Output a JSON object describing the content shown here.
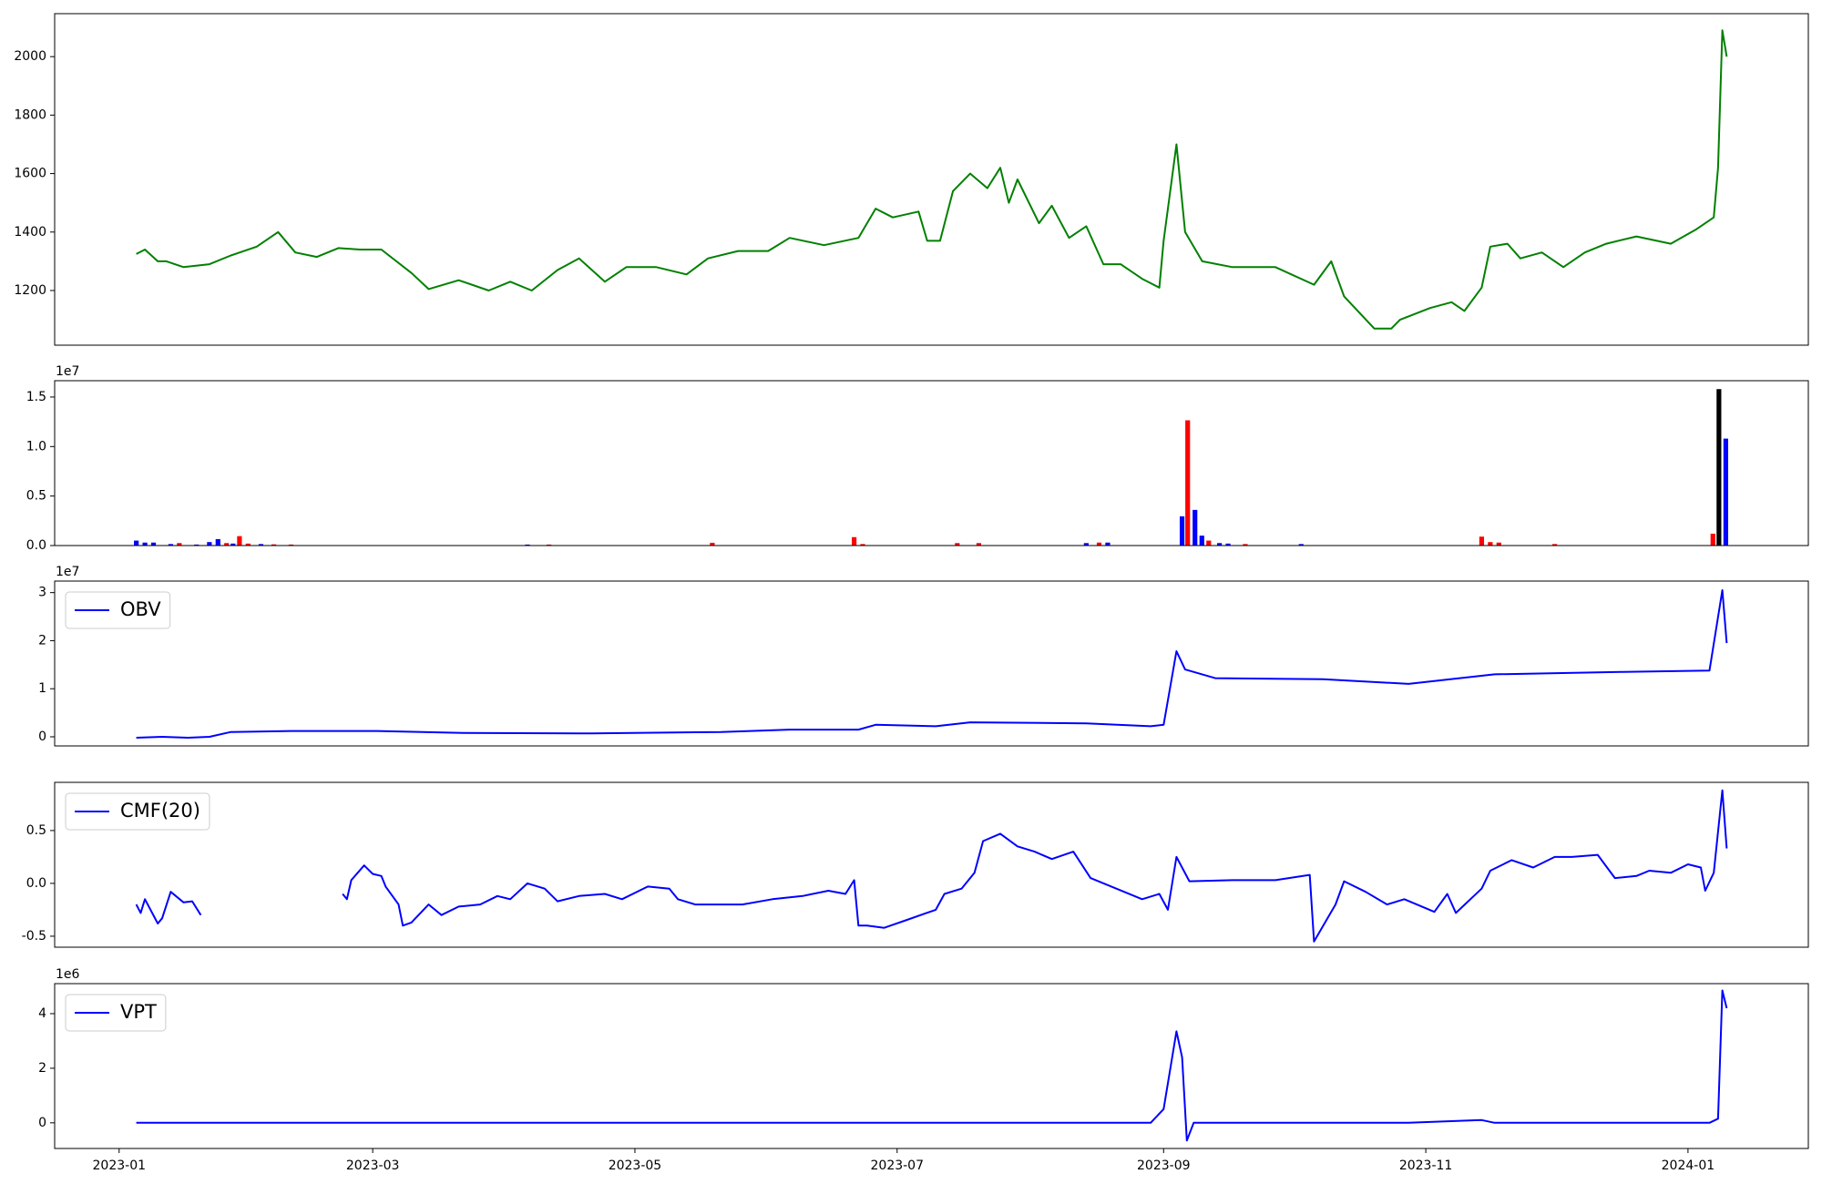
{
  "chart_data": [
    {
      "type": "line",
      "color": "green",
      "xlim": [
        -15,
        393
      ],
      "ylim": [
        1013,
        2147
      ],
      "yticks": [
        1200,
        1400,
        1600,
        1800,
        2000
      ],
      "x": [
        4,
        6,
        9,
        11,
        15,
        21,
        26,
        32,
        37,
        41,
        46,
        51,
        56,
        61,
        68,
        72,
        79,
        86,
        91,
        96,
        102,
        107,
        113,
        118,
        125,
        132,
        137,
        144,
        151,
        156,
        164,
        172,
        176,
        180,
        186,
        188,
        191,
        194,
        198,
        202,
        205,
        207,
        209,
        214,
        217,
        221,
        225,
        229,
        233,
        238,
        242,
        243,
        246,
        248,
        252,
        259,
        264,
        269,
        278,
        282,
        285,
        292,
        296,
        298,
        305,
        310,
        313,
        317,
        319,
        323,
        326,
        331,
        336,
        341,
        346,
        353,
        361,
        367,
        371,
        372,
        373,
        374
      ],
      "values": [
        1325,
        1340,
        1300,
        1300,
        1280,
        1290,
        1320,
        1350,
        1400,
        1330,
        1315,
        1345,
        1340,
        1340,
        1260,
        1205,
        1235,
        1200,
        1230,
        1200,
        1270,
        1310,
        1230,
        1280,
        1280,
        1255,
        1310,
        1335,
        1335,
        1380,
        1355,
        1380,
        1480,
        1450,
        1470,
        1370,
        1370,
        1540,
        1600,
        1550,
        1620,
        1500,
        1580,
        1430,
        1490,
        1380,
        1420,
        1290,
        1290,
        1240,
        1210,
        1370,
        1700,
        1400,
        1300,
        1280,
        1280,
        1280,
        1220,
        1300,
        1180,
        1070,
        1070,
        1100,
        1140,
        1160,
        1130,
        1210,
        1350,
        1360,
        1310,
        1330,
        1280,
        1330,
        1360,
        1385,
        1360,
        1410,
        1450,
        1620,
        2090,
        2000
      ]
    },
    {
      "type": "bar",
      "offset_label": "1e7",
      "xlim": [
        -15,
        393
      ],
      "ylim": [
        0,
        16650000
      ],
      "yticks": [
        {
          "value": 0,
          "label": "0.0"
        },
        {
          "value": 5000000,
          "label": "0.5"
        },
        {
          "value": 10000000,
          "label": "1.0"
        },
        {
          "value": 15000000,
          "label": "1.5"
        }
      ],
      "x": [
        4,
        6,
        8,
        12,
        14,
        18,
        21,
        23,
        25,
        26.5,
        28,
        30,
        33,
        36,
        40,
        95,
        100,
        138,
        171,
        173,
        195,
        200,
        225,
        228,
        230,
        247.3,
        248.6,
        250.3,
        251.9,
        253.5,
        256,
        258,
        262,
        275,
        317,
        319,
        321,
        334,
        370.8,
        372.2,
        373.8
      ],
      "values": [
        500000,
        300000,
        300000,
        150000,
        250000,
        100000,
        350000,
        650000,
        250000,
        200000,
        950000,
        200000,
        150000,
        120000,
        100000,
        100000,
        100000,
        280000,
        850000,
        150000,
        250000,
        250000,
        250000,
        300000,
        300000,
        2950000,
        12650000,
        3600000,
        1000000,
        500000,
        250000,
        200000,
        150000,
        150000,
        900000,
        350000,
        300000,
        150000,
        1200000,
        15800000,
        10800000
      ],
      "colors": [
        "blue",
        "blue",
        "blue",
        "blue",
        "red",
        "blue",
        "blue",
        "blue",
        "red",
        "blue",
        "red",
        "red",
        "blue",
        "red",
        "red",
        "blue",
        "red",
        "red",
        "red",
        "red",
        "red",
        "red",
        "blue",
        "red",
        "blue",
        "blue",
        "red",
        "blue",
        "blue",
        "red",
        "blue",
        "blue",
        "red",
        "blue",
        "red",
        "red",
        "red",
        "red",
        "red",
        "black",
        "blue"
      ]
    },
    {
      "type": "line",
      "offset_label": "1e7",
      "legend": "upper left",
      "xlim": [
        -15,
        393
      ],
      "ylim": [
        -1900000,
        32400000
      ],
      "yticks": [
        {
          "value": 0,
          "label": "0"
        },
        {
          "value": 10000000,
          "label": "1"
        },
        {
          "value": 20000000,
          "label": "2"
        },
        {
          "value": 30000000,
          "label": "3"
        }
      ],
      "x": [
        4,
        10,
        16,
        21,
        26,
        40,
        60,
        80,
        110,
        140,
        156,
        172,
        176,
        190,
        198,
        225,
        240,
        243,
        246,
        248,
        255,
        280,
        300,
        320,
        350,
        370,
        373,
        374
      ],
      "series": [
        {
          "name": "OBV",
          "color": "blue",
          "values": [
            -200000,
            0,
            -200000,
            0,
            1000000,
            1200000,
            1200000,
            800000,
            700000,
            1000000,
            1500000,
            1500000,
            2500000,
            2200000,
            3000000,
            2800000,
            2200000,
            2500000,
            17800000,
            14000000,
            12200000,
            12000000,
            11000000,
            13000000,
            13500000,
            13800000,
            30500000,
            19500000
          ]
        }
      ]
    },
    {
      "type": "line",
      "legend": "upper left",
      "xlim": [
        -15,
        393
      ],
      "ylim": [
        -0.604,
        0.956
      ],
      "yticks": [
        -0.5,
        {
          "value": 0,
          "label": "0.0"
        },
        0.5
      ],
      "x": [
        4,
        5,
        6,
        9,
        10,
        12,
        15,
        17,
        19,
        35,
        52,
        53,
        54,
        57,
        59,
        61,
        62,
        65,
        66,
        68,
        72,
        75,
        79,
        84,
        88,
        91,
        95,
        99,
        102,
        107,
        113,
        117,
        123,
        128,
        130,
        134,
        138,
        145,
        152,
        159,
        165,
        169,
        171,
        172,
        174,
        178,
        183,
        190,
        192,
        196,
        199,
        201,
        205,
        209,
        213,
        217,
        222,
        226,
        232,
        238,
        242,
        244,
        246,
        249,
        259,
        269,
        277,
        278,
        283,
        285,
        290,
        295,
        299,
        306,
        309,
        311,
        317,
        319,
        324,
        329,
        334,
        338,
        344,
        348,
        353,
        356,
        361,
        365,
        368,
        369,
        371,
        373,
        374
      ],
      "series": [
        {
          "name": "CMF(20)",
          "color": "blue",
          "values": [
            -0.2,
            -0.28,
            -0.15,
            -0.38,
            -0.33,
            -0.08,
            -0.18,
            -0.17,
            -0.3,
            null,
            -0.1,
            -0.15,
            0.03,
            0.17,
            0.09,
            0.07,
            -0.03,
            -0.2,
            -0.4,
            -0.37,
            -0.2,
            -0.3,
            -0.22,
            -0.2,
            -0.12,
            -0.15,
            0,
            -0.05,
            -0.17,
            -0.12,
            -0.1,
            -0.15,
            -0.03,
            -0.05,
            -0.15,
            -0.2,
            -0.2,
            -0.2,
            -0.15,
            -0.12,
            -0.07,
            -0.1,
            0.03,
            -0.4,
            -0.4,
            -0.42,
            -0.35,
            -0.25,
            -0.1,
            -0.05,
            0.1,
            0.4,
            0.47,
            0.35,
            0.3,
            0.23,
            0.3,
            0.05,
            -0.05,
            -0.15,
            -0.1,
            -0.25,
            0.25,
            0.02,
            0.03,
            0.03,
            0.08,
            -0.55,
            -0.2,
            0.02,
            -0.08,
            -0.2,
            -0.15,
            -0.27,
            -0.1,
            -0.28,
            -0.05,
            0.12,
            0.22,
            0.15,
            0.25,
            0.25,
            0.27,
            0.05,
            0.07,
            0.12,
            0.1,
            0.18,
            0.15,
            -0.07,
            0.1,
            0.88,
            0.33
          ]
        }
      ]
    },
    {
      "type": "line",
      "offset_label": "1e6",
      "legend": "upper left",
      "xlim": [
        -15,
        393
      ],
      "ylim": [
        -940000,
        5100000
      ],
      "yticks": [
        {
          "value": 0,
          "label": "0"
        },
        {
          "value": 2000000,
          "label": "2"
        },
        {
          "value": 4000000,
          "label": "4"
        }
      ],
      "xticks": [
        {
          "value": 0,
          "label": "2023-01"
        },
        {
          "value": 59,
          "label": "2023-03"
        },
        {
          "value": 120,
          "label": "2023-05"
        },
        {
          "value": 181,
          "label": "2023-07"
        },
        {
          "value": 243,
          "label": "2023-09"
        },
        {
          "value": 304,
          "label": "2023-11"
        },
        {
          "value": 365,
          "label": "2024-01"
        }
      ],
      "x": [
        4,
        60,
        120,
        170,
        240,
        243,
        246,
        247.3,
        248.4,
        250,
        300,
        317,
        320,
        370,
        372,
        373,
        374
      ],
      "series": [
        {
          "name": "VPT",
          "color": "blue",
          "values": [
            0,
            0,
            0,
            0,
            0,
            500000,
            3350000,
            2400000,
            -650000,
            0,
            0,
            100000,
            0,
            0,
            150000,
            4850000,
            4200000
          ]
        }
      ]
    }
  ]
}
